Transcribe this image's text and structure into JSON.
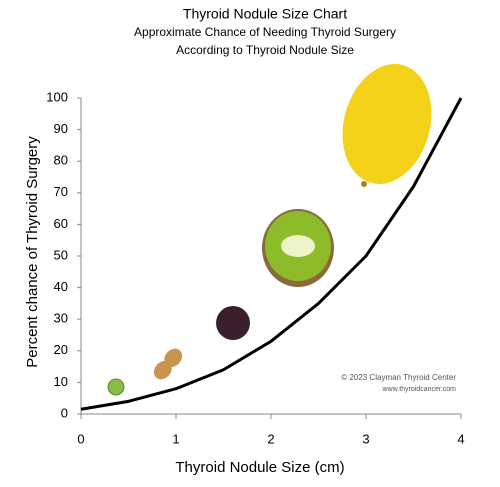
{
  "chart_data": {
    "type": "line",
    "title": "Thyroid Nodule Size Chart",
    "subtitle": [
      "Approximate Chance of Needing Thyroid Surgery",
      "According to Thyroid Nodule Size"
    ],
    "x_label": "Thyroid Nodule Size (cm)",
    "y_label": "Percent chance of Thyroid Surgery",
    "annotations": [
      "© 2023 Clayman Thyroid Center",
      "www.thyroidcancer.com"
    ],
    "x": [
      0,
      0.5,
      1,
      1.5,
      2,
      2.5,
      3,
      3.5,
      4
    ],
    "values": [
      1.5,
      4,
      8,
      14,
      23,
      35,
      50,
      72,
      100
    ],
    "color": "#000000",
    "xlim": [
      0,
      4
    ],
    "xticks": [
      0,
      1,
      2,
      3,
      4
    ],
    "ylim": [
      0,
      100
    ],
    "yticks": [
      0,
      10,
      20,
      30,
      40,
      50,
      60,
      70,
      80,
      90,
      100
    ],
    "grid": false
  }
}
